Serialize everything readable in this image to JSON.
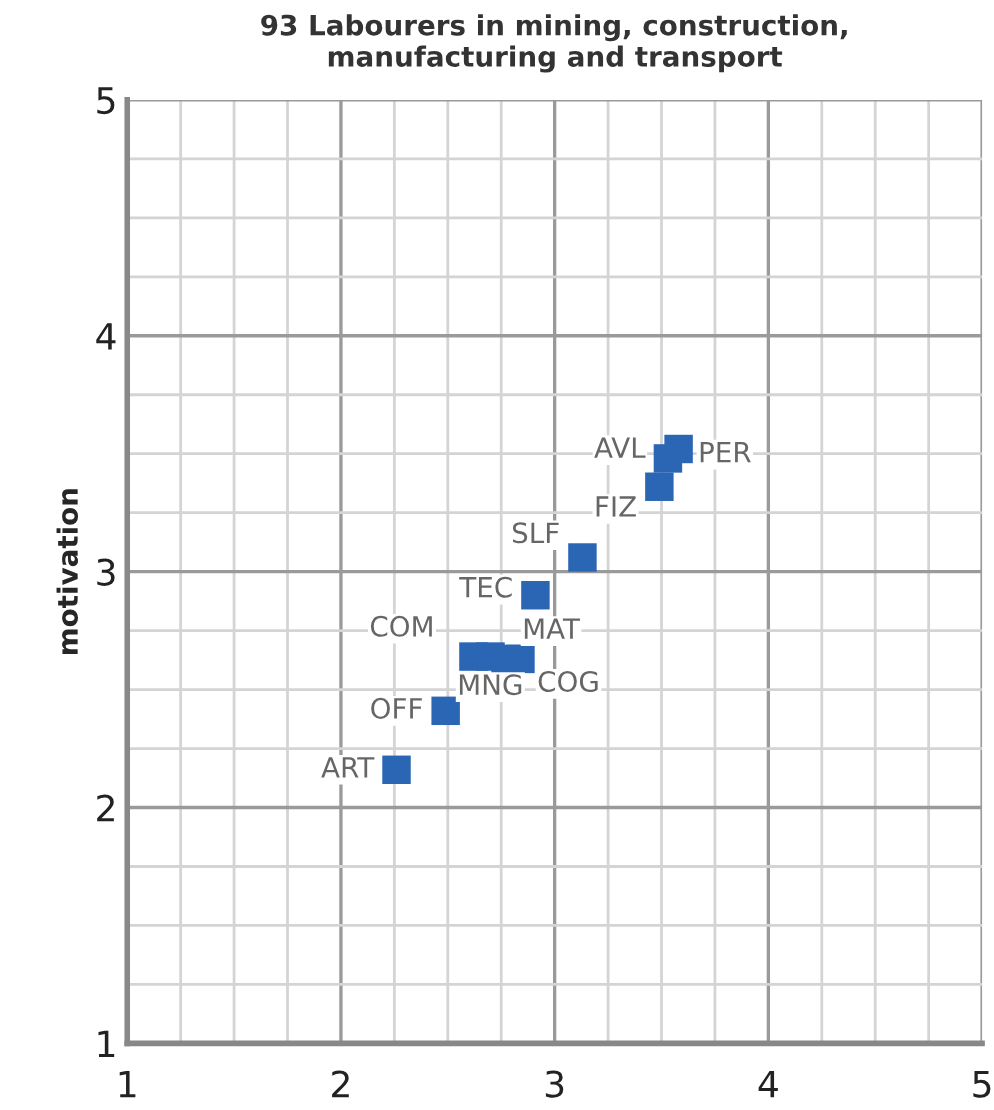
{
  "chart_data": {
    "type": "scatter",
    "title": "93 Labourers in mining, construction,\nmanufacturing and transport",
    "ylabel": "motivation",
    "x": [
      2.26,
      2.49,
      2.62,
      2.7,
      2.77,
      2.84,
      2.91,
      3.13,
      3.49,
      3.53,
      3.58
    ],
    "series": [
      {
        "color": "#2b66b5",
        "values": [
          2.16,
          2.41,
          2.64,
          2.64,
          2.63,
          2.63,
          2.9,
          3.06,
          3.36,
          3.48,
          3.52
        ],
        "value_labels": [
          "ART",
          "OFF",
          "COM",
          "MNG",
          "MAT",
          "COG",
          "TEC",
          "SLF",
          "FIZ",
          "AVL",
          "PER"
        ]
      }
    ],
    "marker": "square",
    "grid": true,
    "legend": false,
    "xlim": [
      1,
      5
    ],
    "ylim": [
      1,
      5
    ],
    "xticks": [
      1,
      {
        "value": 1.25,
        "label": null
      },
      {
        "value": 1.5,
        "label": null
      },
      {
        "value": 1.75,
        "label": null
      },
      2,
      {
        "value": 2.25,
        "label": null
      },
      {
        "value": 2.5,
        "label": null
      },
      {
        "value": 2.75,
        "label": null
      },
      3,
      {
        "value": 3.25,
        "label": null
      },
      {
        "value": 3.5,
        "label": null
      },
      {
        "value": 3.75,
        "label": null
      },
      4,
      {
        "value": 4.25,
        "label": null
      },
      {
        "value": 4.5,
        "label": null
      },
      {
        "value": 4.75,
        "label": null
      },
      5
    ],
    "yticks": [
      1,
      {
        "value": 1.25,
        "label": null
      },
      {
        "value": 1.5,
        "label": null
      },
      {
        "value": 1.75,
        "label": null
      },
      2,
      {
        "value": 2.25,
        "label": null
      },
      {
        "value": 2.5,
        "label": null
      },
      {
        "value": 2.75,
        "label": null
      },
      3,
      {
        "value": 3.25,
        "label": null
      },
      {
        "value": 3.5,
        "label": null
      },
      {
        "value": 3.75,
        "label": null
      },
      4,
      {
        "value": 4.25,
        "label": null
      },
      {
        "value": 4.5,
        "label": null
      },
      {
        "value": 4.75,
        "label": null
      },
      5
    ]
  }
}
